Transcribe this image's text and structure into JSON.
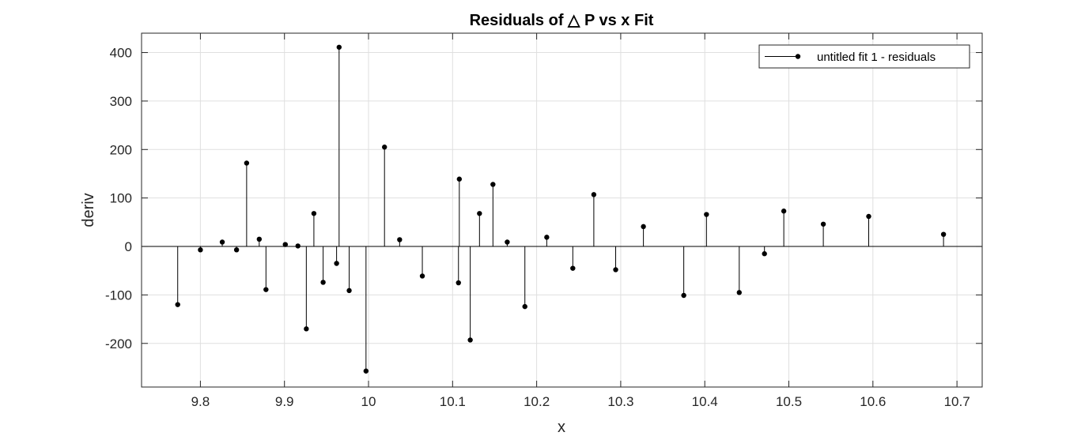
{
  "chart_data": {
    "type": "scatter",
    "subtype": "stem",
    "title": "Residuals of △ P vs x Fit",
    "xlabel": "x",
    "ylabel": "deriv",
    "xlim": [
      9.73,
      10.73
    ],
    "ylim": [
      -290,
      440
    ],
    "xticks": [
      9.8,
      9.9,
      10.0,
      10.1,
      10.2,
      10.3,
      10.4,
      10.5,
      10.6,
      10.7
    ],
    "xtick_labels": [
      "9.8",
      "9.9",
      "10",
      "10.1",
      "10.2",
      "10.3",
      "10.4",
      "10.5",
      "10.6",
      "10.7"
    ],
    "yticks": [
      -200,
      -100,
      0,
      100,
      200,
      300,
      400
    ],
    "ytick_labels": [
      "-200",
      "-100",
      "0",
      "100",
      "200",
      "300",
      "400"
    ],
    "grid": true,
    "legend_position": "top-right",
    "baseline": 0,
    "series": [
      {
        "name": "untitled fit 1 - residuals",
        "color": "#000000",
        "x": [
          9.773,
          9.8,
          9.826,
          9.843,
          9.855,
          9.87,
          9.878,
          9.901,
          9.916,
          9.926,
          9.935,
          9.946,
          9.962,
          9.965,
          9.977,
          9.997,
          10.019,
          10.037,
          10.064,
          10.107,
          10.108,
          10.121,
          10.132,
          10.148,
          10.165,
          10.186,
          10.212,
          10.243,
          10.268,
          10.294,
          10.327,
          10.375,
          10.402,
          10.441,
          10.471,
          10.494,
          10.541,
          10.595,
          10.684
        ],
        "y": [
          -120,
          -7,
          9,
          -7,
          172,
          15,
          -89,
          4,
          1,
          -170,
          68,
          -74,
          -35,
          411,
          -91,
          -257,
          205,
          14,
          -61,
          -75,
          139,
          -193,
          68,
          128,
          9,
          -124,
          19,
          -45,
          107,
          -48,
          41,
          -101,
          66,
          -95,
          -15,
          73,
          46,
          62,
          25
        ]
      }
    ]
  }
}
